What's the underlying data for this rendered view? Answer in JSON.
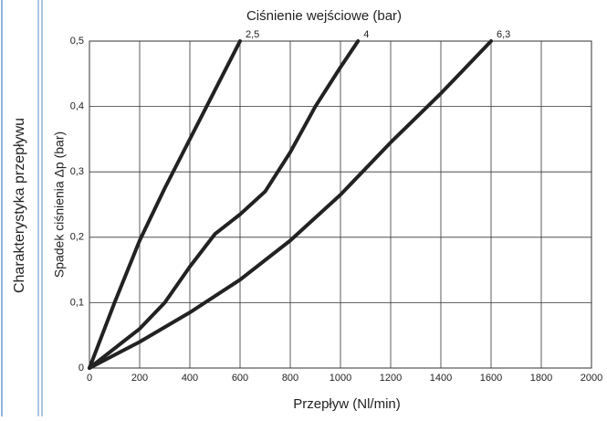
{
  "sidebar": {
    "title": "Charakterystyka przepływu"
  },
  "chart_data": {
    "type": "line",
    "title": "Ciśnienie wejściowe (bar)",
    "x_label": "Przepływ (Nl/min)",
    "y_label": "Spadek ciśnienia Δp (bar)",
    "xlim": [
      0,
      2000
    ],
    "xticks": [
      0,
      200,
      400,
      600,
      800,
      1000,
      1200,
      1400,
      1600,
      1800,
      2000
    ],
    "ylim": [
      0,
      0.5
    ],
    "yticks": [
      0,
      {
        "value": 0.1,
        "label": "0,1"
      },
      {
        "value": 0.2,
        "label": "0,2"
      },
      {
        "value": 0.3,
        "label": "0,3"
      },
      {
        "value": 0.4,
        "label": "0,4"
      },
      {
        "value": 0.5,
        "label": "0,5"
      }
    ],
    "grid": true,
    "series": [
      {
        "name": "2,5",
        "color": "#222222",
        "x": [
          0,
          100,
          200,
          300,
          400,
          500,
          600
        ],
        "values": [
          0,
          0.1,
          0.195,
          0.275,
          0.35,
          0.425,
          0.5
        ]
      },
      {
        "name": "4",
        "color": "#222222",
        "x": [
          0,
          200,
          300,
          400,
          500,
          600,
          700,
          800,
          900,
          1000,
          1070
        ],
        "values": [
          0,
          0.06,
          0.1,
          0.155,
          0.205,
          0.235,
          0.27,
          0.33,
          0.4,
          0.46,
          0.5
        ]
      },
      {
        "name": "6,3",
        "color": "#222222",
        "x": [
          0,
          200,
          400,
          600,
          800,
          1000,
          1200,
          1400,
          1600
        ],
        "values": [
          0,
          0.04,
          0.085,
          0.135,
          0.195,
          0.265,
          0.345,
          0.42,
          0.5
        ]
      }
    ]
  }
}
